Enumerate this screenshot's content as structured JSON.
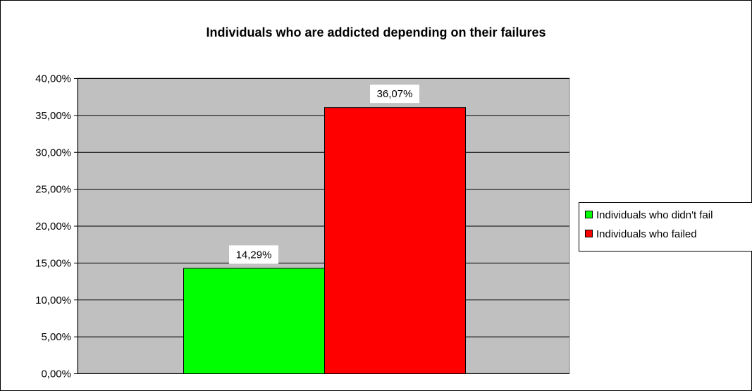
{
  "chart_data": {
    "type": "bar",
    "title": "Individuals who are addicted depending on their failures",
    "xlabel": "",
    "ylabel": "",
    "ylim": [
      0,
      40
    ],
    "yticks": [
      "0,00%",
      "5,00%",
      "10,00%",
      "15,00%",
      "20,00%",
      "25,00%",
      "30,00%",
      "35,00%",
      "40,00%"
    ],
    "grid": true,
    "legend_position": "right",
    "series": [
      {
        "name": "Individuals who didn't fail",
        "value": 14.29,
        "label": "14,29%",
        "color": "#00ff00"
      },
      {
        "name": "Individuals who failed",
        "value": 36.07,
        "label": "36,07%",
        "color": "#ff0000"
      }
    ],
    "plot_background": "#c0c0c0"
  }
}
